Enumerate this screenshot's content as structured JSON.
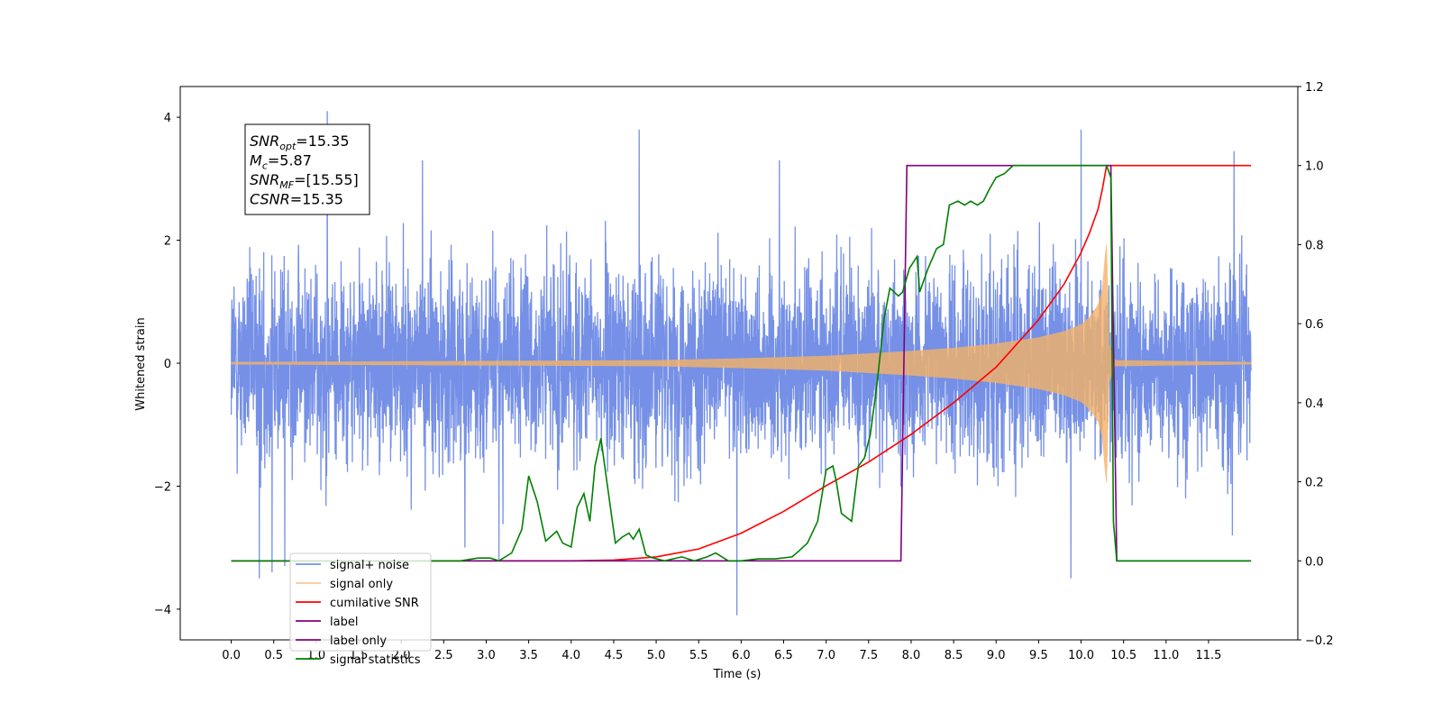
{
  "chart_data": {
    "type": "line",
    "xlabel": "Time (s)",
    "ylabel": "Whitened strain",
    "xlim": [
      -0.6,
      12.55
    ],
    "ylim": [
      -4.5,
      4.5
    ],
    "y2lim": [
      -0.2,
      1.2
    ],
    "x_ticks": [
      "0.0",
      "0.5",
      "1.0",
      "1.5",
      "2.0",
      "2.5",
      "3.0",
      "3.5",
      "4.0",
      "4.5",
      "5.0",
      "5.5",
      "6.0",
      "6.5",
      "7.0",
      "7.5",
      "8.0",
      "8.5",
      "9.0",
      "9.5",
      "10.0",
      "10.5",
      "11.0",
      "11.5"
    ],
    "y_ticks": [
      "4",
      "2",
      "0",
      "−2",
      "−4"
    ],
    "y2_ticks": [
      "1.2",
      "1.0",
      "0.8",
      "0.6",
      "0.4",
      "0.2",
      "0.0",
      "−0.2"
    ],
    "legend_position": "lower-left",
    "annotation": [
      {
        "sym": "SNR",
        "sub": "opt",
        "value": "=15.35"
      },
      {
        "sym": "M",
        "sub": "c",
        "value": "=5.87"
      },
      {
        "sym": "SNR",
        "sub": "MF",
        "value": "=[15.55]"
      },
      {
        "sym": "CSNR",
        "sub": "",
        "value": "=15.35"
      }
    ],
    "series": [
      {
        "name": "signal+ noise",
        "color": "#7590e6",
        "axis": "left",
        "description": "whitened noise with signal, approx ±2 spread",
        "x_range": [
          0.0,
          12.0
        ],
        "spike_points": [
          [
            0.33,
            -3.5
          ],
          [
            0.48,
            -3.4
          ],
          [
            0.63,
            -3.3
          ],
          [
            1.13,
            4.1
          ],
          [
            2.25,
            3.3
          ],
          [
            2.75,
            -3.0
          ],
          [
            3.15,
            -3.2
          ],
          [
            4.8,
            3.8
          ],
          [
            5.95,
            -4.1
          ],
          [
            6.45,
            3.3
          ],
          [
            10.0,
            3.8
          ],
          [
            9.88,
            -3.5
          ],
          [
            11.8,
            3.45
          ],
          [
            11.78,
            -2.8
          ]
        ]
      },
      {
        "name": "signal only",
        "color": "#f5b266",
        "axis": "left",
        "description": "chirp envelope growing to merger",
        "envelope": [
          [
            0,
            0.02
          ],
          [
            5.0,
            0.05
          ],
          [
            6.0,
            0.08
          ],
          [
            7.0,
            0.12
          ],
          [
            8.0,
            0.2
          ],
          [
            8.5,
            0.25
          ],
          [
            9.0,
            0.32
          ],
          [
            9.5,
            0.42
          ],
          [
            9.8,
            0.52
          ],
          [
            10.0,
            0.63
          ],
          [
            10.1,
            0.75
          ],
          [
            10.2,
            0.95
          ],
          [
            10.25,
            1.2
          ],
          [
            10.28,
            1.7
          ],
          [
            10.3,
            1.95
          ],
          [
            10.33,
            0.3
          ],
          [
            10.4,
            0.05
          ],
          [
            12.0,
            0.02
          ]
        ]
      },
      {
        "name": "cumilative SNR",
        "color": "#ff0000",
        "axis": "right",
        "points": [
          [
            0.0,
            0.0
          ],
          [
            4.0,
            0.0
          ],
          [
            4.5,
            0.002
          ],
          [
            5.0,
            0.01
          ],
          [
            5.5,
            0.03
          ],
          [
            6.0,
            0.07
          ],
          [
            6.5,
            0.125
          ],
          [
            7.0,
            0.19
          ],
          [
            7.5,
            0.25
          ],
          [
            8.0,
            0.32
          ],
          [
            8.5,
            0.4
          ],
          [
            9.0,
            0.49
          ],
          [
            9.5,
            0.61
          ],
          [
            9.8,
            0.7
          ],
          [
            10.0,
            0.78
          ],
          [
            10.1,
            0.83
          ],
          [
            10.2,
            0.89
          ],
          [
            10.25,
            0.94
          ],
          [
            10.3,
            1.0
          ],
          [
            12.0,
            1.0
          ]
        ]
      },
      {
        "name": "label",
        "color": "#800080",
        "axis": "right",
        "points": [
          [
            0.0,
            0.0
          ],
          [
            7.88,
            0.0
          ],
          [
            7.95,
            1.0
          ],
          [
            10.35,
            1.0
          ],
          [
            10.42,
            0.0
          ],
          [
            12.0,
            0.0
          ]
        ]
      },
      {
        "name": "label only",
        "color": "#800080",
        "axis": "right",
        "hidden_in_plot": true
      },
      {
        "name": "signal statistics",
        "color": "#008000",
        "axis": "right",
        "points": [
          [
            0.0,
            0.0
          ],
          [
            2.7,
            0.0
          ],
          [
            2.9,
            0.007
          ],
          [
            3.05,
            0.007
          ],
          [
            3.15,
            0.0
          ],
          [
            3.3,
            0.02
          ],
          [
            3.42,
            0.08
          ],
          [
            3.5,
            0.215
          ],
          [
            3.6,
            0.15
          ],
          [
            3.7,
            0.05
          ],
          [
            3.83,
            0.075
          ],
          [
            3.9,
            0.045
          ],
          [
            4.0,
            0.035
          ],
          [
            4.07,
            0.135
          ],
          [
            4.15,
            0.17
          ],
          [
            4.22,
            0.1
          ],
          [
            4.28,
            0.24
          ],
          [
            4.35,
            0.31
          ],
          [
            4.42,
            0.2
          ],
          [
            4.52,
            0.045
          ],
          [
            4.6,
            0.06
          ],
          [
            4.68,
            0.07
          ],
          [
            4.73,
            0.055
          ],
          [
            4.8,
            0.08
          ],
          [
            4.88,
            0.015
          ],
          [
            4.95,
            0.008
          ],
          [
            5.1,
            0.0
          ],
          [
            5.3,
            0.01
          ],
          [
            5.45,
            0.0
          ],
          [
            5.6,
            0.01
          ],
          [
            5.7,
            0.02
          ],
          [
            5.85,
            0.0
          ],
          [
            6.0,
            0.0
          ],
          [
            6.2,
            0.005
          ],
          [
            6.4,
            0.005
          ],
          [
            6.6,
            0.01
          ],
          [
            6.68,
            0.025
          ],
          [
            6.78,
            0.045
          ],
          [
            6.9,
            0.1
          ],
          [
            7.0,
            0.23
          ],
          [
            7.08,
            0.24
          ],
          [
            7.12,
            0.2
          ],
          [
            7.18,
            0.12
          ],
          [
            7.3,
            0.1
          ],
          [
            7.38,
            0.24
          ],
          [
            7.45,
            0.26
          ],
          [
            7.52,
            0.32
          ],
          [
            7.6,
            0.45
          ],
          [
            7.68,
            0.61
          ],
          [
            7.75,
            0.69
          ],
          [
            7.85,
            0.67
          ],
          [
            7.9,
            0.68
          ],
          [
            7.98,
            0.74
          ],
          [
            8.07,
            0.77
          ],
          [
            8.1,
            0.68
          ],
          [
            8.2,
            0.74
          ],
          [
            8.3,
            0.79
          ],
          [
            8.38,
            0.8
          ],
          [
            8.45,
            0.9
          ],
          [
            8.55,
            0.91
          ],
          [
            8.63,
            0.9
          ],
          [
            8.7,
            0.91
          ],
          [
            8.78,
            0.9
          ],
          [
            8.85,
            0.91
          ],
          [
            8.92,
            0.94
          ],
          [
            9.0,
            0.97
          ],
          [
            9.1,
            0.98
          ],
          [
            9.2,
            1.0
          ],
          [
            10.3,
            1.0
          ],
          [
            10.35,
            0.97
          ],
          [
            10.38,
            0.1
          ],
          [
            10.42,
            0.0
          ],
          [
            12.0,
            0.0
          ]
        ]
      }
    ]
  }
}
